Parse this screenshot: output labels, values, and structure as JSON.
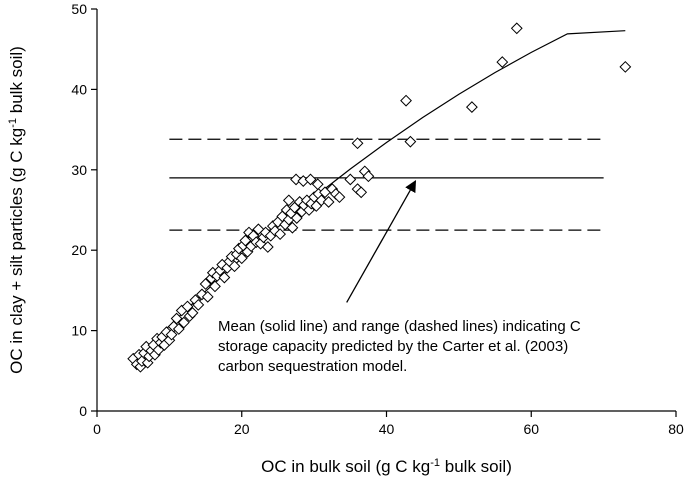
{
  "chart_data": {
    "type": "scatter",
    "title": "",
    "xlabel": {
      "pre": "OC in bulk soil (g C kg",
      "sup": "-1",
      "post": " bulk soil)"
    },
    "ylabel": {
      "pre": "OC in clay + silt particles (g C kg",
      "sup": "-1",
      "post": " bulk soil)"
    },
    "xlim": [
      0,
      80
    ],
    "ylim": [
      0,
      50
    ],
    "xticks": [
      0,
      20,
      40,
      60,
      80
    ],
    "yticks": [
      0,
      10,
      20,
      30,
      40,
      50
    ],
    "grid": false,
    "marker": "open-diamond",
    "points": [
      [
        5.0,
        6.5
      ],
      [
        5.5,
        5.8
      ],
      [
        5.8,
        7.0
      ],
      [
        6.0,
        5.5
      ],
      [
        6.2,
        6.2
      ],
      [
        6.5,
        7.2
      ],
      [
        6.8,
        8.0
      ],
      [
        7.0,
        6.0
      ],
      [
        7.2,
        6.8
      ],
      [
        7.5,
        7.5
      ],
      [
        7.8,
        8.2
      ],
      [
        8.0,
        7.0
      ],
      [
        8.3,
        9.0
      ],
      [
        8.5,
        7.6
      ],
      [
        8.8,
        8.5
      ],
      [
        9.0,
        9.2
      ],
      [
        9.3,
        8.2
      ],
      [
        9.6,
        9.8
      ],
      [
        10.0,
        8.8
      ],
      [
        10.3,
        9.5
      ],
      [
        10.6,
        10.5
      ],
      [
        11.0,
        11.5
      ],
      [
        11.3,
        10.2
      ],
      [
        11.7,
        12.5
      ],
      [
        12.0,
        11.0
      ],
      [
        12.5,
        13.0
      ],
      [
        12.8,
        11.8
      ],
      [
        13.2,
        12.2
      ],
      [
        13.6,
        13.8
      ],
      [
        14.0,
        13.2
      ],
      [
        14.5,
        14.5
      ],
      [
        15.0,
        15.8
      ],
      [
        15.3,
        14.2
      ],
      [
        15.8,
        16.5
      ],
      [
        16.0,
        17.2
      ],
      [
        16.3,
        15.5
      ],
      [
        16.6,
        16.8
      ],
      [
        17.0,
        17.5
      ],
      [
        17.3,
        18.2
      ],
      [
        17.6,
        16.6
      ],
      [
        18.0,
        17.8
      ],
      [
        18.3,
        18.6
      ],
      [
        18.6,
        19.2
      ],
      [
        19.0,
        18.0
      ],
      [
        19.3,
        19.5
      ],
      [
        19.6,
        20.2
      ],
      [
        20.0,
        19.0
      ],
      [
        20.2,
        20.6
      ],
      [
        20.5,
        21.2
      ],
      [
        20.8,
        19.8
      ],
      [
        21.0,
        22.2
      ],
      [
        21.3,
        20.5
      ],
      [
        21.6,
        21.8
      ],
      [
        22.0,
        21.0
      ],
      [
        22.3,
        22.6
      ],
      [
        22.6,
        20.8
      ],
      [
        23.0,
        21.6
      ],
      [
        23.3,
        22.2
      ],
      [
        23.6,
        20.4
      ],
      [
        24.0,
        21.8
      ],
      [
        24.3,
        23.0
      ],
      [
        24.6,
        22.4
      ],
      [
        25.0,
        23.5
      ],
      [
        25.3,
        22.0
      ],
      [
        25.6,
        24.2
      ],
      [
        26.0,
        23.2
      ],
      [
        26.2,
        25.0
      ],
      [
        26.5,
        23.8
      ],
      [
        26.8,
        24.6
      ],
      [
        27.0,
        22.8
      ],
      [
        27.3,
        25.3
      ],
      [
        27.6,
        24.0
      ],
      [
        28.0,
        26.0
      ],
      [
        28.3,
        24.8
      ],
      [
        28.6,
        25.6
      ],
      [
        29.0,
        26.2
      ],
      [
        29.3,
        25.0
      ],
      [
        29.6,
        25.8
      ],
      [
        30.0,
        26.6
      ],
      [
        30.3,
        25.5
      ],
      [
        30.6,
        27.0
      ],
      [
        31.0,
        26.2
      ],
      [
        31.5,
        27.2
      ],
      [
        32.0,
        26.0
      ],
      [
        32.5,
        27.6
      ],
      [
        33.0,
        27.0
      ],
      [
        33.5,
        26.6
      ],
      [
        27.5,
        28.8
      ],
      [
        28.5,
        28.6
      ],
      [
        29.5,
        28.8
      ],
      [
        30.5,
        28.2
      ],
      [
        35.0,
        28.8
      ],
      [
        36.0,
        27.6
      ],
      [
        36.5,
        27.2
      ],
      [
        37.0,
        29.8
      ],
      [
        37.5,
        29.2
      ],
      [
        36.0,
        33.3
      ],
      [
        43.3,
        33.5
      ],
      [
        42.7,
        38.6
      ],
      [
        51.8,
        37.8
      ],
      [
        56.0,
        43.4
      ],
      [
        58.0,
        47.6
      ],
      [
        73.0,
        42.8
      ],
      [
        26.5,
        26.2
      ]
    ],
    "curve": [
      [
        5,
        6.2
      ],
      [
        10,
        10.6
      ],
      [
        15,
        14.9
      ],
      [
        20,
        19.0
      ],
      [
        25,
        22.9
      ],
      [
        30,
        26.6
      ],
      [
        35,
        30.1
      ],
      [
        40,
        33.4
      ],
      [
        45,
        36.5
      ],
      [
        50,
        39.4
      ],
      [
        55,
        42.1
      ],
      [
        60,
        44.6
      ],
      [
        65,
        46.9
      ],
      [
        73,
        47.3
      ]
    ],
    "hlines": [
      {
        "y": 33.8,
        "style": "dashed",
        "x": [
          10,
          70
        ]
      },
      {
        "y": 29.0,
        "style": "solid",
        "x": [
          10,
          70
        ]
      },
      {
        "y": 22.5,
        "style": "dashed",
        "x": [
          10,
          70
        ]
      }
    ],
    "annotation": {
      "lines": [
        "Mean (solid line) and range (dashed lines) indicating C",
        "storage capacity predicted by the Carter et al. (2003)",
        "carbon sequestration model."
      ],
      "arrow_from": [
        34.5,
        13.5
      ],
      "arrow_to": [
        44,
        28.6
      ]
    }
  }
}
